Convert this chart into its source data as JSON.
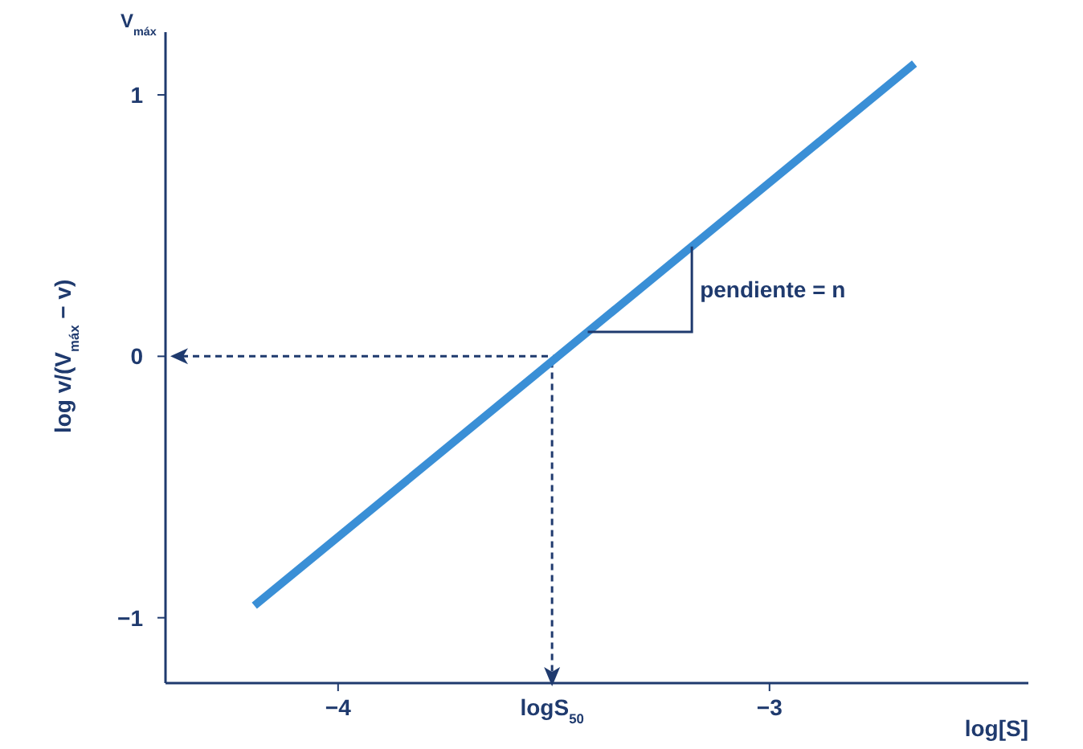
{
  "chart_data": {
    "type": "line",
    "ylabel": "log v/(V$_{máx}$ − v)",
    "xlabel": "log[S]",
    "x": [
      -4.194,
      -2.664
    ],
    "series": [
      {
        "color": "#3a8fd6",
        "values": [
          -0.954,
          1.12
        ]
      }
    ],
    "xlim": [
      -4.4,
      -2.4
    ],
    "ylim": [
      -1.25,
      1.24
    ],
    "xticks": [
      {
        "value": -4,
        "label": "−4"
      },
      {
        "value": -3,
        "label": "−3"
      }
    ],
    "yticks": [
      1,
      0,
      {
        "value": -1,
        "label": "−1"
      }
    ],
    "ref_lines": [
      {
        "axis": "y",
        "value": 0,
        "line_style": "dashed",
        "color": "#1f3a6e"
      },
      {
        "axis": "x",
        "value": -3.504,
        "label": "logS$_{50}$",
        "line_style": "dashed",
        "color": "#1f3a6e"
      }
    ],
    "annotations": [
      "V$_{máx}$",
      {
        "text": "pendiente = n",
        "x": -3.18,
        "y": 0.42
      }
    ],
    "grid": false,
    "line_style": "solid"
  }
}
